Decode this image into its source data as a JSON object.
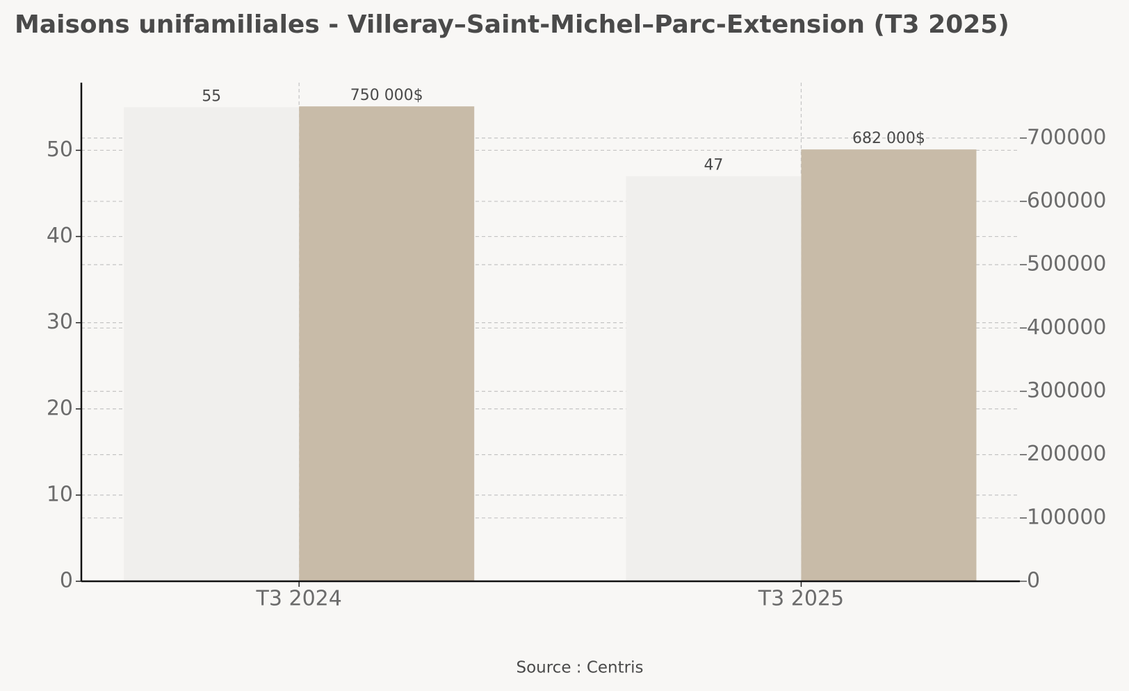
{
  "chart_data": {
    "type": "bar",
    "title": "Maisons unifamiliales - Villeray–Saint-Michel–Parc-Extension (T3 2025)",
    "source": "Source : Centris",
    "categories": [
      "T3 2024",
      "T3 2025"
    ],
    "series": [
      {
        "color": "#f0efed",
        "values": [
          55,
          47
        ]
      },
      {
        "color": "#c8bba8",
        "values": [
          750000,
          682000
        ],
        "value_labels": [
          "750 000$",
          "682 000$"
        ],
        "axis": "y2"
      }
    ],
    "ylim": [
      0,
      57.85
    ],
    "yticks": [
      0,
      10,
      20,
      30,
      40,
      50
    ],
    "y2lim": [
      0,
      787500
    ],
    "y2ticks": [
      0,
      100000,
      200000,
      300000,
      400000,
      500000,
      600000,
      700000
    ],
    "grid": true
  }
}
